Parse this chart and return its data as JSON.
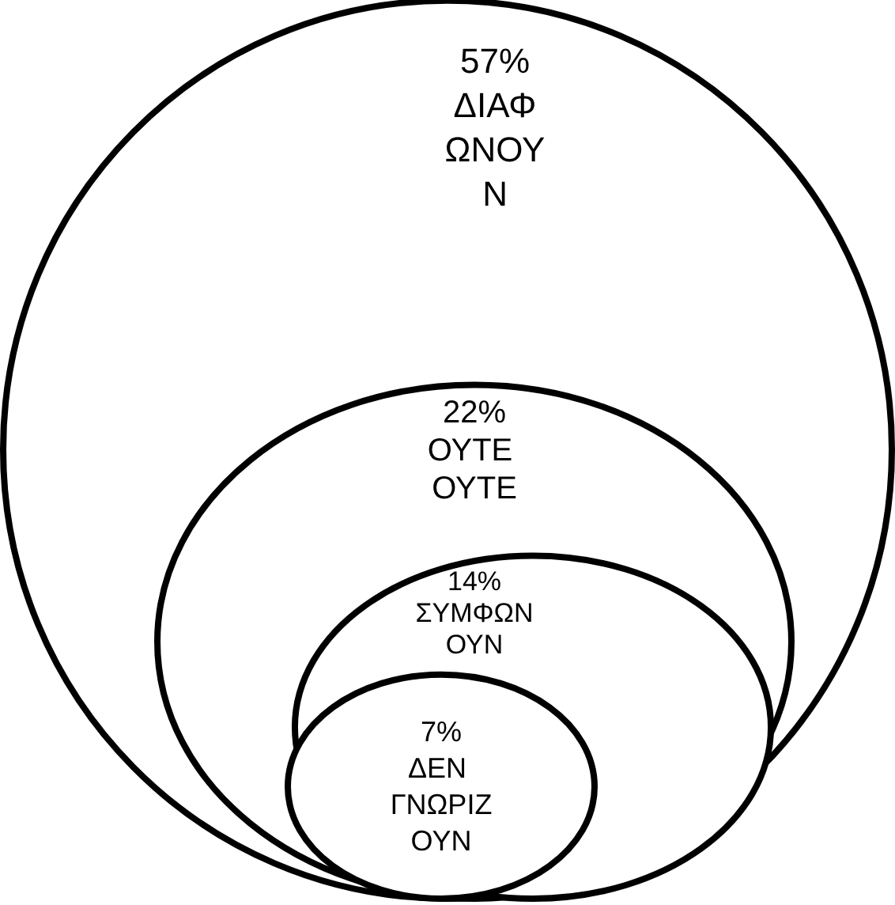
{
  "chart_data": {
    "type": "other",
    "categories": [
      "ΔΙΑΦΩΝΟΥΝ",
      "ΟΥΤΕ ΟΥΤΕ",
      "ΣΥΜΦΩΝΟΥΝ",
      "ΔΕΝ ΓΝΩΡΙΖΟΥΝ"
    ],
    "values": [
      57,
      22,
      14,
      7
    ],
    "value_labels": [
      "57%",
      "22%",
      "14%",
      "7%"
    ],
    "colors": [
      "#ffffff",
      "#ffffff",
      "#ffffff",
      "#ffffff"
    ]
  }
}
